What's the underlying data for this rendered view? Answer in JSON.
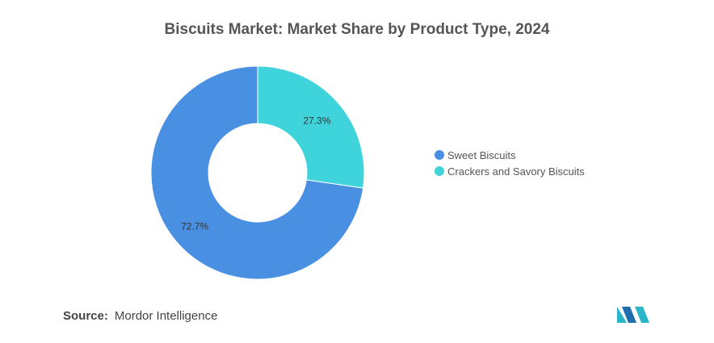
{
  "chart_data": {
    "type": "pie",
    "subtype": "donut",
    "title": "Biscuits Market: Market Share by Product Type, 2024",
    "categories": [
      "Sweet Biscuits",
      "Crackers and Savory Biscuits"
    ],
    "values": [
      72.7,
      27.3
    ],
    "value_labels": [
      "72.7%",
      "27.3%"
    ],
    "unit": "%",
    "colors": [
      "#4a90e2",
      "#3fd4dc"
    ],
    "legend_position": "right"
  },
  "source": {
    "label": "Source:",
    "text": "Mordor Intelligence"
  },
  "logo": {
    "name": "mordor-intelligence-logo",
    "colors": [
      "#2bb5c9",
      "#1f6fae"
    ]
  }
}
